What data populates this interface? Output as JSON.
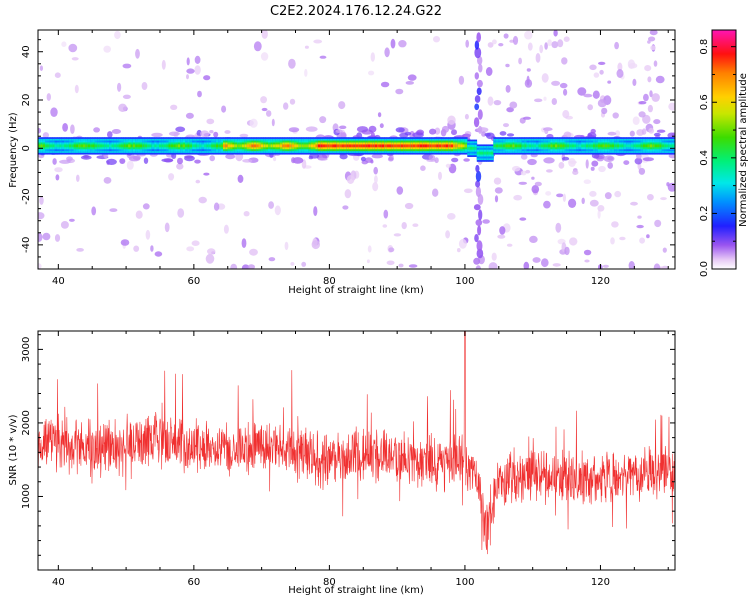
{
  "figure": {
    "title": "C2E2.2024.176.12.24.G22"
  },
  "chart_data": [
    {
      "type": "heatmap",
      "xlabel": "Height of straight line (km)",
      "ylabel": "Frequency (Hz)",
      "xlim": [
        37,
        131
      ],
      "ylim": [
        -50,
        49
      ],
      "xticks": [
        40,
        60,
        80,
        100,
        120
      ],
      "yticks": [
        -40,
        -20,
        0,
        20,
        40
      ],
      "colorbar": {
        "label": "Normalized spectral amplitude",
        "range": [
          0.0,
          0.86
        ],
        "ticks": [
          0.0,
          0.2,
          0.4,
          0.6,
          0.8
        ],
        "colormap": "gist_ncar-like (white, purple, blue, cyan, green, yellow, orange, red, magenta)"
      },
      "features": {
        "main_band": {
          "center_freq_hz": 1,
          "half_width_hz": 3,
          "x_range": [
            37,
            131
          ]
        },
        "peak_region_km": [
          64,
          100
        ],
        "disturbance_km": 102,
        "vertical_stripe_km": 102
      }
    },
    {
      "type": "line",
      "xlabel": "Height of straight line (km)",
      "ylabel": "SNR (10 * v/v)",
      "xlim": [
        37,
        131
      ],
      "ylim": [
        0,
        3250
      ],
      "xticks": [
        40,
        60,
        80,
        100,
        120
      ],
      "yticks": [
        1000,
        2000,
        3000
      ],
      "series": [
        {
          "color": "#f03030",
          "x": [
            37,
            40,
            45,
            50,
            55,
            60,
            65,
            70,
            75,
            80,
            85,
            90,
            95,
            100,
            102,
            103,
            104,
            105,
            110,
            115,
            120,
            125,
            131
          ],
          "mean": [
            1700,
            1750,
            1650,
            1700,
            1750,
            1700,
            1650,
            1700,
            1600,
            1500,
            1550,
            1550,
            1450,
            1450,
            1200,
            500,
            900,
            1250,
            1300,
            1250,
            1250,
            1300,
            1300
          ]
        }
      ]
    }
  ],
  "colors": {
    "line": "#f03030",
    "axis": "#000000",
    "background": "#ffffff"
  }
}
